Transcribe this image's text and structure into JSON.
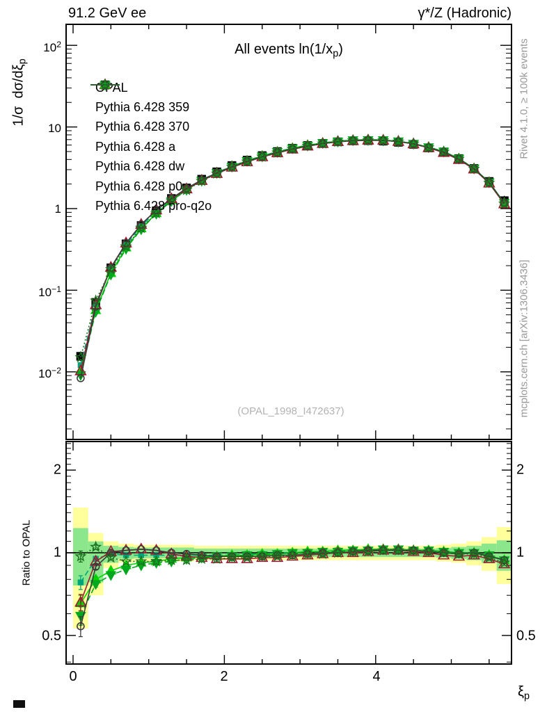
{
  "header": {
    "left": "91.2 GeV ee",
    "right": "γ*/Z (Hadronic)"
  },
  "title": {
    "pre": "All events ln(1/x",
    "sub": "p",
    "post": ")"
  },
  "watermark": "(OPAL_1998_I472637)",
  "side_notes": {
    "top": "Rivet 4.1.0, ≥ 100k events",
    "bottom": "mcplots.cern.ch [arXiv:1306.3436]"
  },
  "axes": {
    "main_y_label": {
      "pre": "1/σ  dσ/dξ",
      "sub": "p"
    },
    "ratio_y_label": "Ratio to OPAL",
    "x_label": {
      "pre": "ξ",
      "sub": "p"
    },
    "main_y_ticks": [
      {
        "base": "10",
        "exp": "2"
      },
      {
        "base": "10",
        "exp": ""
      },
      {
        "base": "1",
        "exp": ""
      },
      {
        "base": "10",
        "exp": "−1"
      },
      {
        "base": "10",
        "exp": "−2"
      }
    ],
    "ratio_y_ticks": [
      "2",
      "1",
      "0.5"
    ],
    "x_ticks": [
      "0",
      "2",
      "4"
    ]
  },
  "chart_data": {
    "type": "line",
    "title": "All events ln(1/x_p)",
    "xlabel": "ξ_p",
    "ylabel_main": "1/σ dσ/dξ_p",
    "ylabel_ratio": "Ratio to OPAL",
    "x_range": [
      -0.09,
      5.8
    ],
    "main_y_log_range": [
      -2.83,
      2.26
    ],
    "ratio_y_range": [
      0.39,
      2.54
    ],
    "legend_position": "top-left",
    "x": [
      0.1,
      0.3,
      0.5,
      0.7,
      0.9,
      1.1,
      1.3,
      1.5,
      1.7,
      1.9,
      2.1,
      2.3,
      2.5,
      2.7,
      2.9,
      3.1,
      3.3,
      3.5,
      3.7,
      3.9,
      4.1,
      4.3,
      4.5,
      4.7,
      4.9,
      5.1,
      5.3,
      5.5,
      5.7
    ],
    "bin_width": 0.2,
    "opal": {
      "label": "OPAL",
      "color": "#000000",
      "marker": "square",
      "filled": true,
      "values": [
        0.0155,
        0.071,
        0.188,
        0.37,
        0.62,
        0.94,
        1.33,
        1.79,
        2.29,
        2.82,
        3.37,
        3.92,
        4.46,
        5.0,
        5.49,
        5.93,
        6.3,
        6.58,
        6.76,
        6.8,
        6.71,
        6.49,
        6.12,
        5.55,
        4.95,
        4.1,
        3.1,
        2.15,
        1.25
      ]
    },
    "series": [
      {
        "label": "Pythia 6.428 359",
        "color": "#00a478",
        "line": "dashed",
        "marker": "square",
        "filled": true,
        "marker_size": 7,
        "ratio": [
          0.78,
          0.95,
          0.99,
          0.98,
          0.98,
          0.98,
          0.98,
          0.98,
          0.98,
          0.98,
          0.98,
          0.99,
          0.99,
          1.0,
          1.0,
          1.01,
          1.01,
          1.02,
          1.02,
          1.03,
          1.03,
          1.03,
          1.02,
          1.02,
          1.01,
          1.0,
          1.0,
          0.98,
          0.94
        ]
      },
      {
        "label": "Pythia 6.428 370",
        "color": "#9e1a33",
        "line": "solid",
        "marker": "triangle-up",
        "filled": false,
        "marker_size": 8,
        "ratio": [
          0.66,
          0.93,
          1.01,
          1.02,
          1.03,
          1.02,
          0.99,
          0.97,
          0.96,
          0.95,
          0.95,
          0.95,
          0.96,
          0.96,
          0.97,
          0.98,
          0.99,
          1.0,
          1.0,
          1.01,
          1.02,
          1.02,
          1.01,
          1.0,
          0.98,
          0.97,
          0.98,
          0.95,
          0.91
        ]
      },
      {
        "label": "Pythia 6.428 a",
        "color": "#00d300",
        "line": "solid",
        "marker": "triangle-up",
        "filled": true,
        "marker_size": 7,
        "ratio": [
          0.655,
          0.8,
          0.86,
          0.9,
          0.92,
          0.93,
          0.95,
          0.96,
          0.97,
          0.97,
          0.98,
          0.98,
          0.99,
          0.99,
          1.0,
          1.01,
          1.01,
          1.02,
          1.02,
          1.03,
          1.03,
          1.03,
          1.02,
          1.02,
          1.01,
          1.0,
          1.0,
          0.98,
          0.94
        ]
      },
      {
        "label": "Pythia 6.428 dw",
        "color": "#00a81e",
        "line": "dashed",
        "marker": "triangle-down",
        "filled": true,
        "marker_size": 7,
        "ratio": [
          0.59,
          0.77,
          0.83,
          0.87,
          0.9,
          0.92,
          0.93,
          0.95,
          0.96,
          0.97,
          0.97,
          0.98,
          0.98,
          0.99,
          1.0,
          1.0,
          1.01,
          1.01,
          1.02,
          1.02,
          1.03,
          1.03,
          1.02,
          1.02,
          1.01,
          1.0,
          1.0,
          0.98,
          0.94
        ]
      },
      {
        "label": "Pythia 6.428 p0",
        "color": "#3a3a3a",
        "line": "solid",
        "marker": "circle",
        "filled": false,
        "marker_size": 5,
        "ratio": [
          0.54,
          0.89,
          1.0,
          1.02,
          1.03,
          1.02,
          1.0,
          0.99,
          0.98,
          0.97,
          0.97,
          0.97,
          0.97,
          0.98,
          0.98,
          0.99,
          1.0,
          1.0,
          1.01,
          1.02,
          1.02,
          1.02,
          1.02,
          1.01,
          1.0,
          0.99,
          1.0,
          0.97,
          0.94
        ]
      },
      {
        "label": "Pythia 6.428 pro-q2o",
        "color": "#1e6f1e",
        "line": "dotted",
        "marker": "star",
        "filled": false,
        "marker_size": 7,
        "ratio": [
          0.97,
          1.05,
          0.96,
          0.93,
          0.93,
          0.93,
          0.94,
          0.94,
          0.95,
          0.95,
          0.96,
          0.96,
          0.97,
          0.97,
          0.98,
          0.99,
          0.99,
          1.0,
          1.01,
          1.01,
          1.02,
          1.02,
          1.02,
          1.01,
          1.0,
          0.99,
          0.99,
          0.96,
          0.92
        ]
      }
    ],
    "bands": {
      "yellow_color": "#ffff9c",
      "green_color": "#8ce78c",
      "bins": [
        [
          0.53,
          1.46,
          0.76,
          1.23
        ],
        [
          0.7,
          1.18,
          0.78,
          1.1
        ],
        [
          0.88,
          1.1,
          0.92,
          1.06
        ],
        [
          0.92,
          1.08,
          0.95,
          1.05
        ],
        [
          0.93,
          1.07,
          0.955,
          1.045
        ],
        [
          0.93,
          1.07,
          0.955,
          1.045
        ],
        [
          0.93,
          1.07,
          0.955,
          1.045
        ],
        [
          0.93,
          1.07,
          0.955,
          1.045
        ],
        [
          0.94,
          1.06,
          0.965,
          1.035
        ],
        [
          0.94,
          1.06,
          0.965,
          1.035
        ],
        [
          0.94,
          1.06,
          0.965,
          1.035
        ],
        [
          0.94,
          1.06,
          0.965,
          1.035
        ],
        [
          0.94,
          1.06,
          0.965,
          1.035
        ],
        [
          0.94,
          1.06,
          0.965,
          1.035
        ],
        [
          0.94,
          1.06,
          0.965,
          1.035
        ],
        [
          0.94,
          1.06,
          0.965,
          1.035
        ],
        [
          0.94,
          1.06,
          0.965,
          1.035
        ],
        [
          0.94,
          1.06,
          0.965,
          1.035
        ],
        [
          0.94,
          1.06,
          0.965,
          1.035
        ],
        [
          0.94,
          1.06,
          0.965,
          1.035
        ],
        [
          0.94,
          1.06,
          0.965,
          1.035
        ],
        [
          0.94,
          1.06,
          0.965,
          1.035
        ],
        [
          0.94,
          1.06,
          0.965,
          1.035
        ],
        [
          0.94,
          1.06,
          0.965,
          1.035
        ],
        [
          0.93,
          1.07,
          0.96,
          1.04
        ],
        [
          0.92,
          1.08,
          0.95,
          1.05
        ],
        [
          0.9,
          1.1,
          0.94,
          1.06
        ],
        [
          0.86,
          1.14,
          0.92,
          1.08
        ],
        [
          0.77,
          1.24,
          0.86,
          1.11
        ]
      ]
    }
  }
}
